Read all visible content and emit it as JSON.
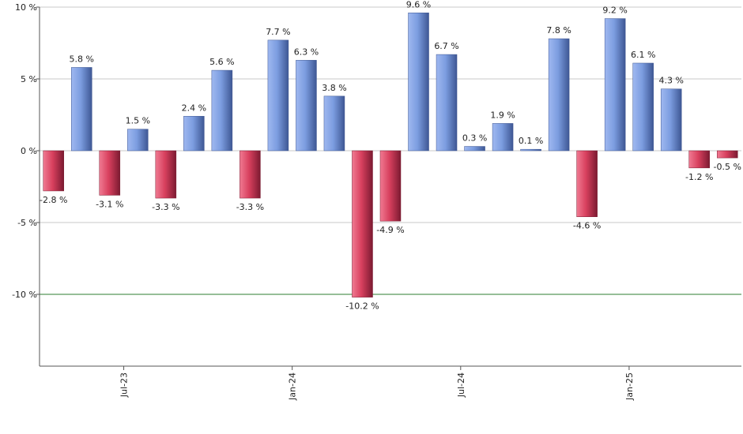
{
  "chart_data": {
    "type": "bar",
    "title": "",
    "xlabel": "",
    "ylabel": "",
    "ylim": [
      -15,
      10
    ],
    "yticks": [
      10,
      5,
      0,
      -5,
      -10
    ],
    "ytick_labels": [
      "10 %",
      "5 %",
      "0 %",
      "-5 %",
      "-10 %"
    ],
    "reference_line": {
      "value": -10,
      "color": "#2e7d32"
    },
    "x_ticks": [
      {
        "label": "Jul-23",
        "index": 2.5
      },
      {
        "label": "Jan-24",
        "index": 8.5
      },
      {
        "label": "Jul-24",
        "index": 14.5
      },
      {
        "label": "Jan-25",
        "index": 20.5
      }
    ],
    "values": [
      -2.8,
      5.8,
      -3.1,
      1.5,
      -3.3,
      2.4,
      5.6,
      -3.3,
      7.7,
      6.3,
      3.8,
      -10.2,
      -4.9,
      9.6,
      6.7,
      0.3,
      1.9,
      0.1,
      7.8,
      -4.6,
      9.2,
      6.1,
      4.3,
      -1.2,
      -0.5
    ],
    "value_labels": [
      "-2.8 %",
      "5.8 %",
      "-3.1 %",
      "1.5 %",
      "-3.3 %",
      "2.4 %",
      "5.6 %",
      "-3.3 %",
      "7.7 %",
      "6.3 %",
      "3.8 %",
      "-10.2 %",
      "-4.9 %",
      "9.6 %",
      "6.7 %",
      "0.3 %",
      "1.9 %",
      "0.1 %",
      "7.8 %",
      "-4.6 %",
      "9.2 %",
      "6.1 %",
      "4.3 %",
      "-1.2 %",
      "-0.5 %"
    ],
    "colors": {
      "positive": "#6f8fd6",
      "negative": "#c8324f"
    }
  }
}
